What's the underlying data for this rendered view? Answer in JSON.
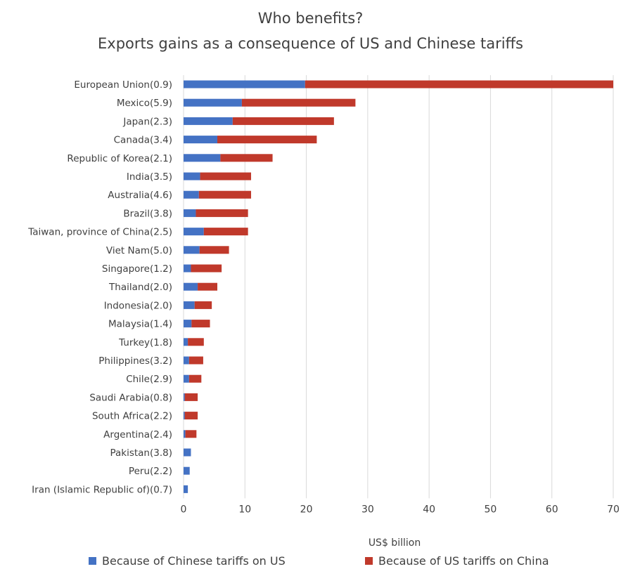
{
  "chart_data": {
    "type": "bar",
    "orientation": "horizontal",
    "stacked": true,
    "title": "Who benefits?",
    "subtitle": "Exports gains as a consequence of US and Chinese tariffs",
    "xlabel": "US$ billion",
    "ylabel": "",
    "xlim": [
      0,
      70
    ],
    "xticks": [
      0,
      10,
      20,
      30,
      40,
      50,
      60,
      70
    ],
    "grid": true,
    "legend_position": "bottom",
    "categories": [
      "European Union(0.9)",
      "Mexico(5.9)",
      "Japan(2.3)",
      "Canada(3.4)",
      "Republic of Korea(2.1)",
      "India(3.5)",
      "Australia(4.6)",
      "Brazil(3.8)",
      "Taiwan, province of China(2.5)",
      "Viet Nam(5.0)",
      "Singapore(1.2)",
      "Thailand(2.0)",
      "Indonesia(2.0)",
      "Malaysia(1.4)",
      "Turkey(1.8)",
      "Philippines(3.2)",
      "Chile(2.9)",
      "Saudi Arabia(0.8)",
      "South Africa(2.2)",
      "Argentina(2.4)",
      "Pakistan(3.8)",
      "Peru(2.2)",
      "Iran (Islamic Republic of)(0.7)"
    ],
    "series": [
      {
        "name": "Because of Chinese tariffs on US",
        "color": "#4472C4",
        "values": [
          19.8,
          9.5,
          8.0,
          5.5,
          6.0,
          2.7,
          2.5,
          2.0,
          3.3,
          2.6,
          1.2,
          2.3,
          1.8,
          1.3,
          0.7,
          0.9,
          0.9,
          0.2,
          0.2,
          0.3,
          1.2,
          1.0,
          0.7
        ]
      },
      {
        "name": "Because of US tariffs on China",
        "color": "#C0392B",
        "values": [
          50.2,
          18.5,
          16.5,
          16.2,
          8.5,
          8.3,
          8.5,
          8.5,
          7.2,
          4.8,
          5.0,
          3.2,
          2.8,
          3.0,
          2.6,
          2.3,
          2.0,
          2.1,
          2.1,
          1.8,
          0.0,
          0.0,
          0.0
        ]
      }
    ]
  }
}
